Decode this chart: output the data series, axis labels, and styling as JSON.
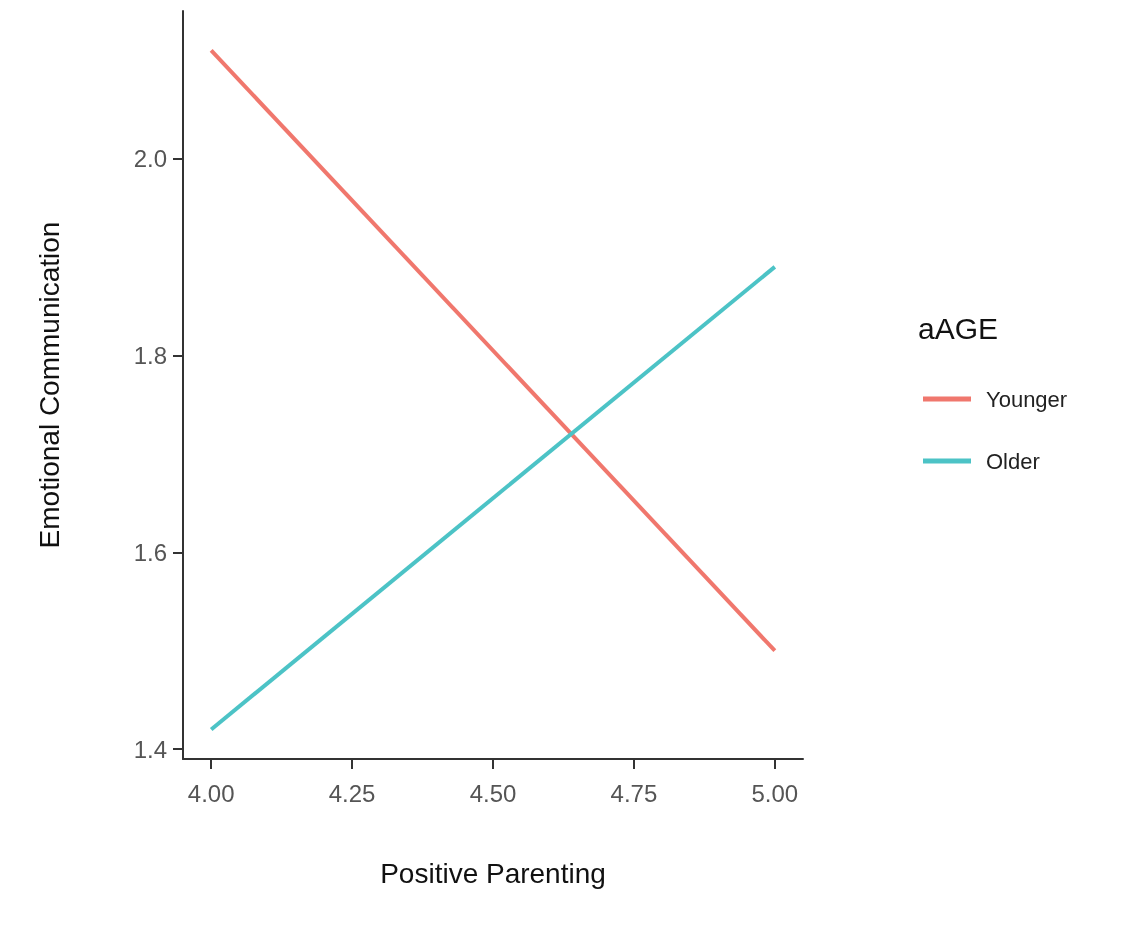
{
  "chart_data": {
    "type": "line",
    "xlabel": "Positive Parenting",
    "ylabel": "Emotional Communication",
    "legend_title": "aAGE",
    "legend": "right",
    "x": [
      4.0,
      5.0
    ],
    "series": [
      {
        "name": "Younger",
        "color": "#f0776d",
        "values": [
          2.11,
          1.5
        ]
      },
      {
        "name": "Older",
        "color": "#4cc3c6",
        "values": [
          1.42,
          1.89
        ]
      }
    ],
    "xlim": [
      3.95,
      5.05
    ],
    "xticks": [
      {
        "value": 4,
        "label": "4.00"
      },
      {
        "value": 4.25,
        "label": "4.25"
      },
      {
        "value": 4.5,
        "label": "4.50"
      },
      {
        "value": 4.75,
        "label": "4.75"
      },
      {
        "value": 5,
        "label": "5.00"
      }
    ],
    "ylim": [
      1.39,
      2.15
    ],
    "yticks": [
      {
        "value": 1.4,
        "label": "1.4"
      },
      {
        "value": 1.6,
        "label": "1.6"
      },
      {
        "value": 1.8,
        "label": "1.8"
      },
      {
        "value": 2.0,
        "label": "2.0"
      }
    ],
    "grid": false,
    "marker": "none",
    "line_style": "solid"
  }
}
